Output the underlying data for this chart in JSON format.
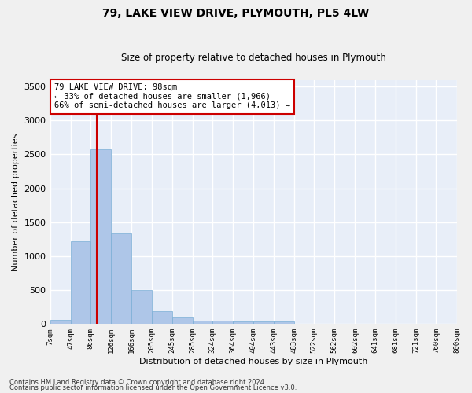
{
  "title": "79, LAKE VIEW DRIVE, PLYMOUTH, PL5 4LW",
  "subtitle": "Size of property relative to detached houses in Plymouth",
  "xlabel": "Distribution of detached houses by size in Plymouth",
  "ylabel": "Number of detached properties",
  "bar_color": "#aec6e8",
  "bar_edge_color": "#7aaed6",
  "background_color": "#e8eef8",
  "grid_color": "#ffffff",
  "vline_x": 98,
  "vline_color": "#cc0000",
  "annotation_text": "79 LAKE VIEW DRIVE: 98sqm\n← 33% of detached houses are smaller (1,966)\n66% of semi-detached houses are larger (4,013) →",
  "annotation_box_color": "#ffffff",
  "annotation_box_edge": "#cc0000",
  "footnote1": "Contains HM Land Registry data © Crown copyright and database right 2024.",
  "footnote2": "Contains public sector information licensed under the Open Government Licence v3.0.",
  "bin_edges": [
    7,
    47,
    86,
    126,
    166,
    205,
    245,
    285,
    324,
    364,
    404,
    443,
    483,
    522,
    562,
    602,
    641,
    681,
    721,
    760,
    800
  ],
  "bin_labels": [
    "7sqm",
    "47sqm",
    "86sqm",
    "126sqm",
    "166sqm",
    "205sqm",
    "245sqm",
    "285sqm",
    "324sqm",
    "364sqm",
    "404sqm",
    "443sqm",
    "483sqm",
    "522sqm",
    "562sqm",
    "602sqm",
    "641sqm",
    "681sqm",
    "721sqm",
    "760sqm",
    "800sqm"
  ],
  "bar_heights": [
    60,
    1220,
    2580,
    1330,
    500,
    185,
    105,
    55,
    50,
    40,
    35,
    40,
    5,
    5,
    3,
    2,
    2,
    1,
    1,
    1
  ],
  "ylim": [
    0,
    3600
  ],
  "yticks": [
    0,
    500,
    1000,
    1500,
    2000,
    2500,
    3000,
    3500
  ]
}
